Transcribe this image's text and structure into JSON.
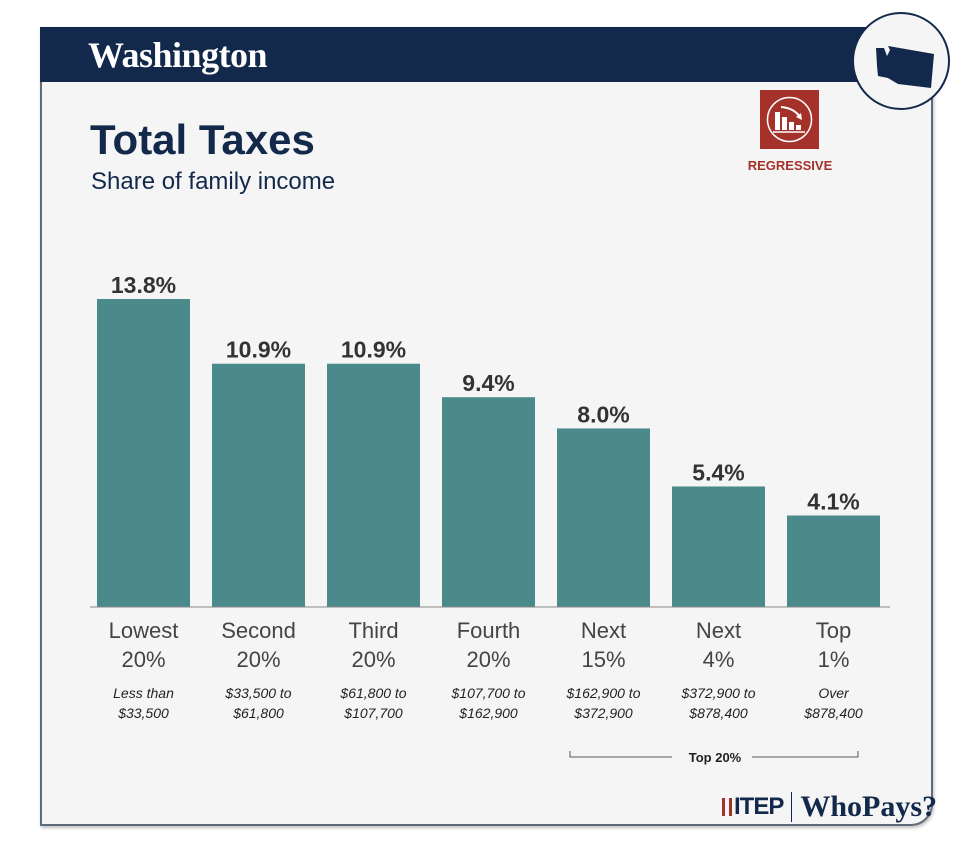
{
  "header": {
    "state": "Washington"
  },
  "title": "Total Taxes",
  "subtitle": "Share of family income",
  "badge": {
    "label": "REGRESSIVE",
    "icon": "regressive-bars-icon",
    "color": "#a5312b"
  },
  "brand": {
    "itep": "ITEP",
    "whopays": "WhoPays?",
    "navy": "#13294b"
  },
  "chart_data": {
    "type": "bar",
    "categories": [
      [
        "Lowest",
        "20%"
      ],
      [
        "Second",
        "20%"
      ],
      [
        "Third",
        "20%"
      ],
      [
        "Fourth",
        "20%"
      ],
      [
        "Next",
        "15%"
      ],
      [
        "Next",
        "4%"
      ],
      [
        "Top",
        "1%"
      ]
    ],
    "ranges": [
      [
        "Less than",
        "$33,500"
      ],
      [
        "$33,500 to",
        "$61,800"
      ],
      [
        "$61,800 to",
        "$107,700"
      ],
      [
        "$107,700 to",
        "$162,900"
      ],
      [
        "$162,900 to",
        "$372,900"
      ],
      [
        "$372,900 to",
        "$878,400"
      ],
      [
        "Over",
        "$878,400"
      ]
    ],
    "values": [
      13.8,
      10.9,
      10.9,
      9.4,
      8.0,
      5.4,
      4.1
    ],
    "value_labels": [
      "13.8%",
      "10.9%",
      "10.9%",
      "9.4%",
      "8.0%",
      "5.4%",
      "4.1%"
    ],
    "bar_color": "#4a8a8b",
    "group_label": "Top 20%",
    "ylim": [
      0,
      13.8
    ]
  }
}
